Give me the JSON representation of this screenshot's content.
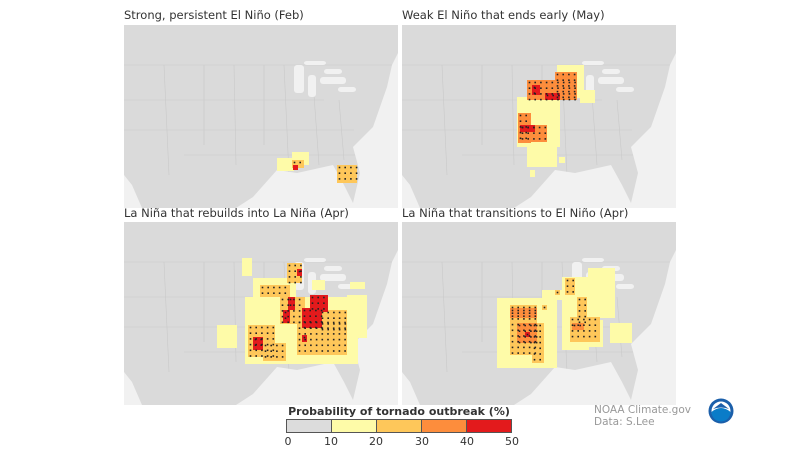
{
  "panels": [
    {
      "title": "Strong, persistent El Niño (Feb)"
    },
    {
      "title": "Weak El Niño that ends early (May)"
    },
    {
      "title": "La Niña that rebuilds into La Niña (Apr)"
    },
    {
      "title": "La Niña that transitions to El Niño (Apr)"
    }
  ],
  "legend": {
    "title": "Probability of tornado outbreak (%)",
    "ticks": [
      "0",
      "10",
      "20",
      "30",
      "40",
      "50"
    ],
    "colors": [
      "#dcdcdc",
      "#fefba8",
      "#fec75a",
      "#fd8d3c",
      "#e31a1c"
    ]
  },
  "map_colors": {
    "land": "#dadada",
    "water": "#f1f1f1"
  },
  "credits": {
    "line1": "NOAA Climate.gov",
    "line2": "Data: S.Lee"
  },
  "logo": {
    "text": "NOAA"
  }
}
